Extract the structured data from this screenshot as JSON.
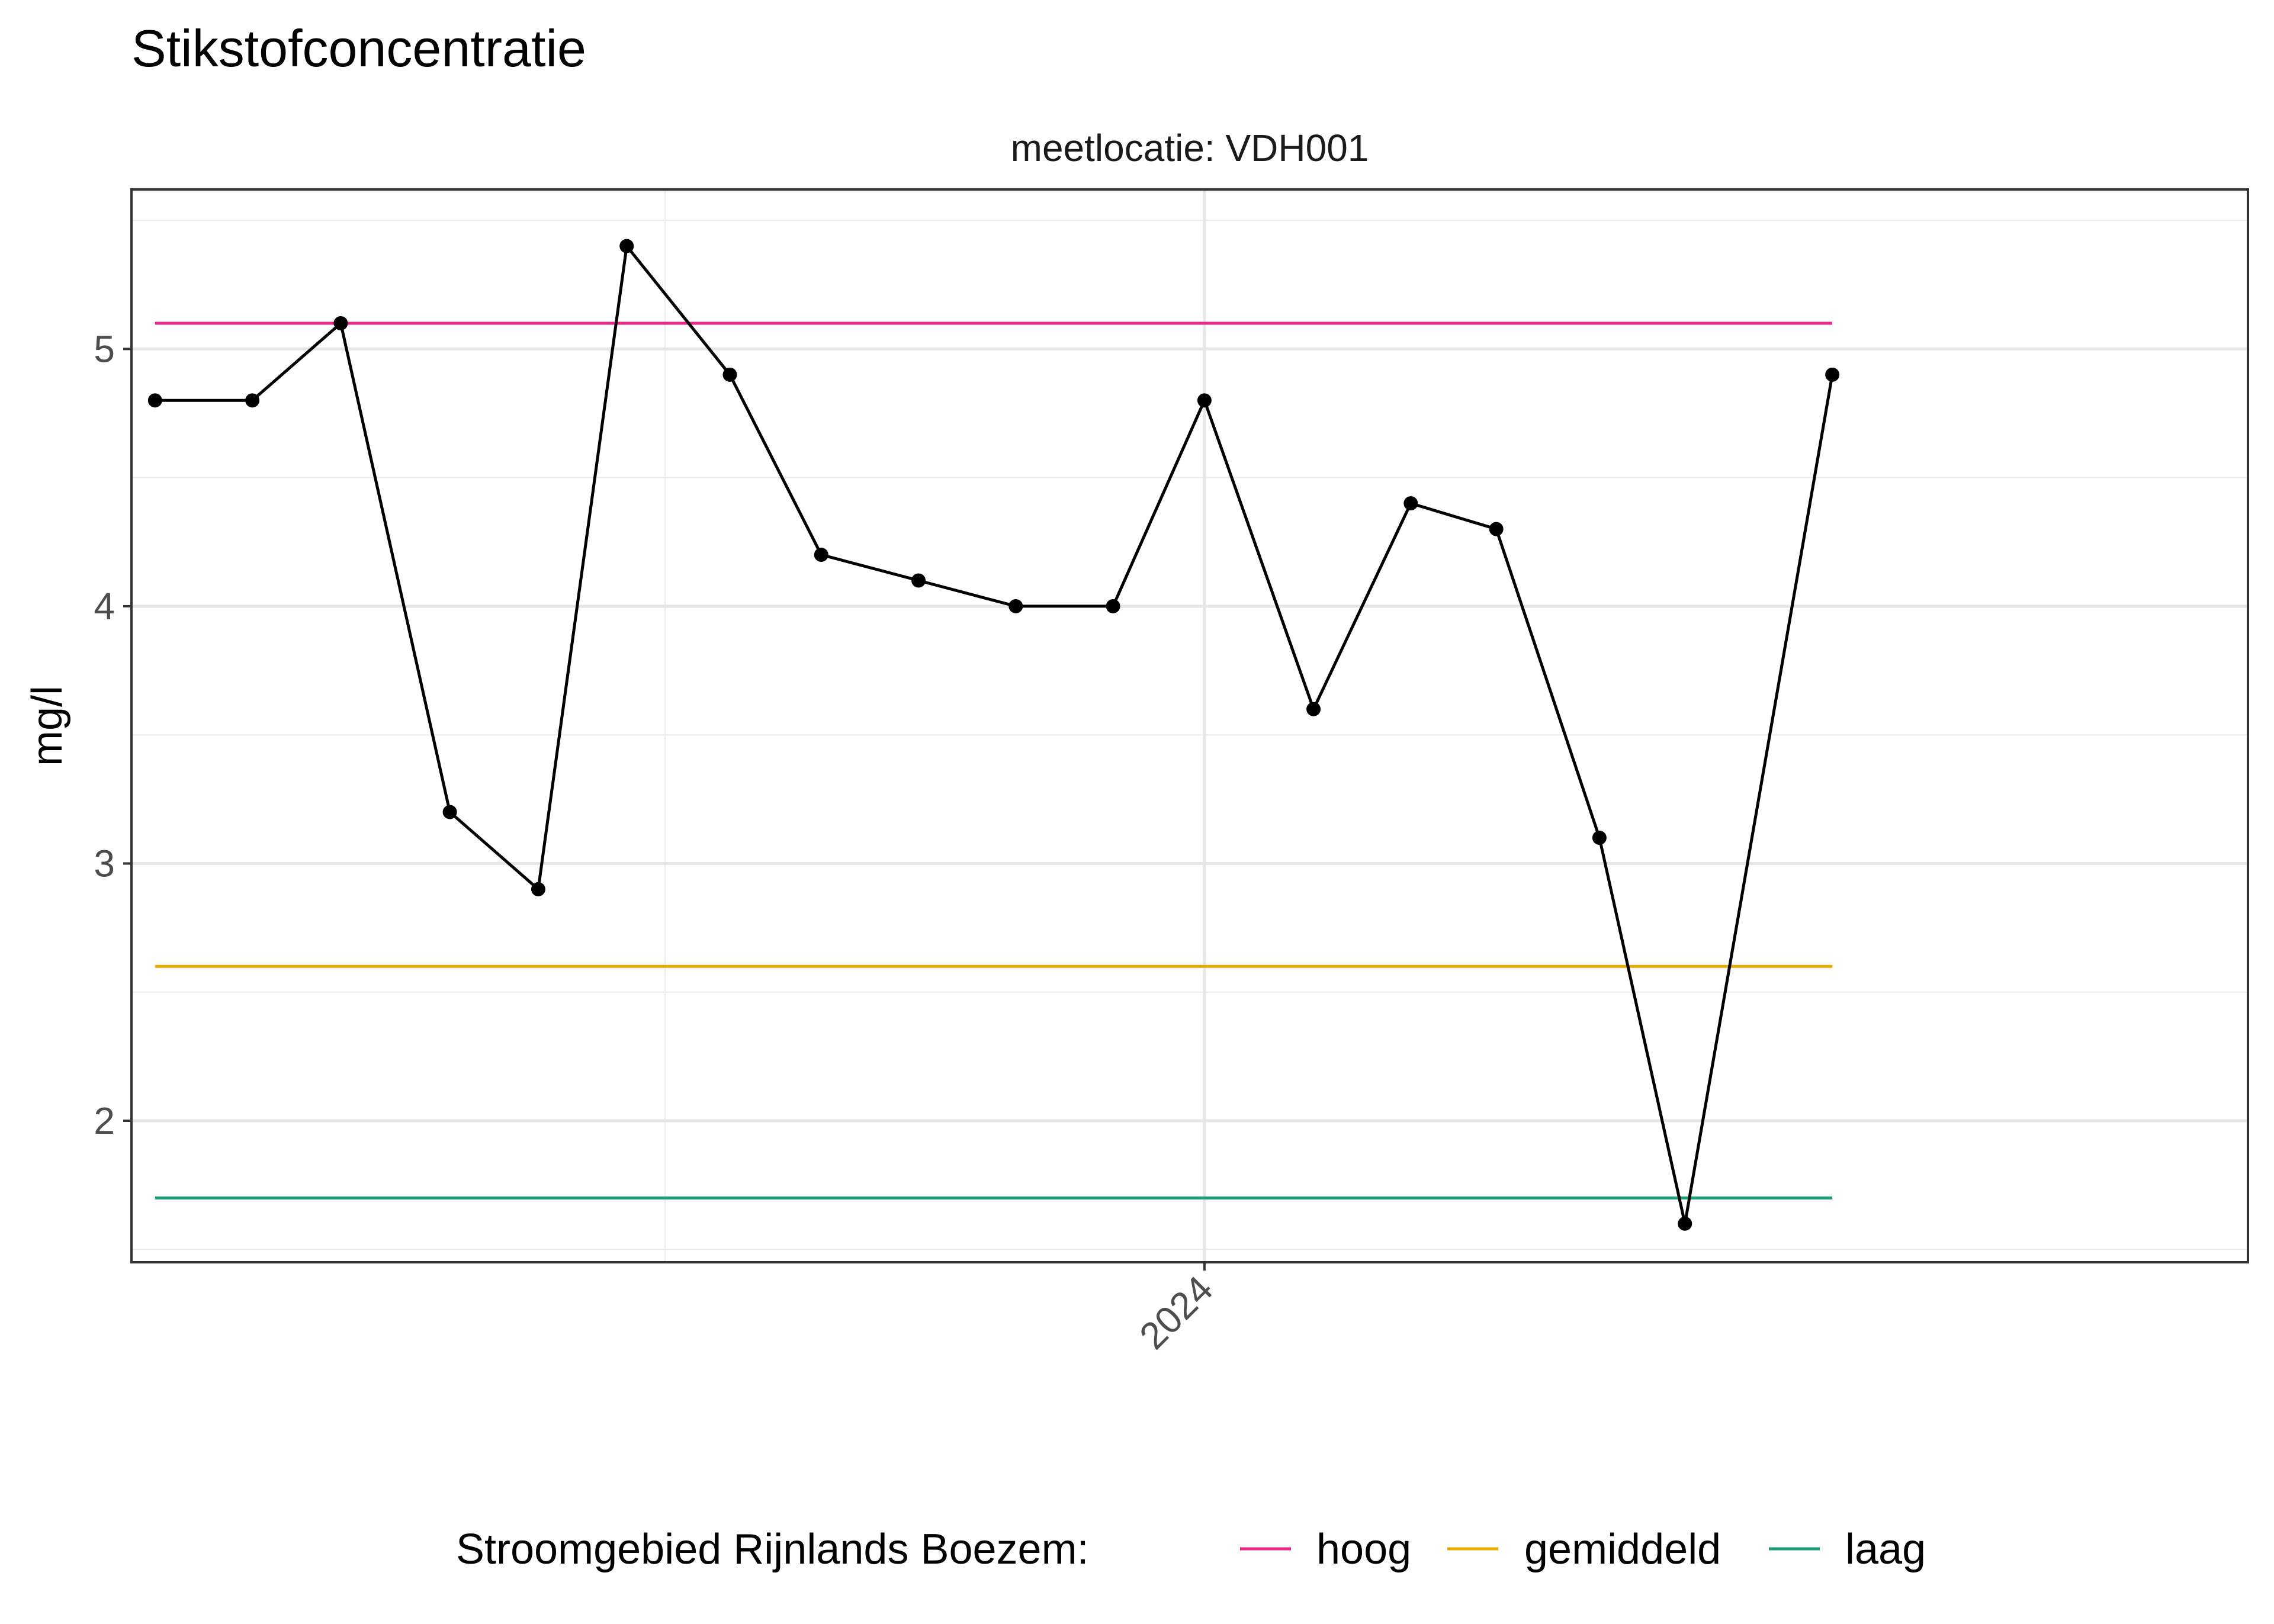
{
  "chart_data": {
    "type": "line",
    "title": "Stikstofconcentratie",
    "facet_label": "meetlocatie: VDH001",
    "xlabel": "",
    "ylabel": "mg/l",
    "x_ticks": [
      {
        "label": "2024",
        "value": "2024-01-01"
      }
    ],
    "xlim": [
      "2023-01-02",
      "2024-12-20"
    ],
    "ylim": [
      1.45,
      5.62
    ],
    "y_ticks": [
      2,
      3,
      4,
      5
    ],
    "grid": true,
    "series": [
      {
        "color": "#000000",
        "points": [
          {
            "x": "2023-01-10",
            "y": 4.8
          },
          {
            "x": "2023-02-12",
            "y": 4.8
          },
          {
            "x": "2023-03-14",
            "y": 5.1
          },
          {
            "x": "2023-04-20",
            "y": 3.2
          },
          {
            "x": "2023-05-20",
            "y": 2.9
          },
          {
            "x": "2023-06-19",
            "y": 5.4
          },
          {
            "x": "2023-07-24",
            "y": 4.9
          },
          {
            "x": "2023-08-24",
            "y": 4.2
          },
          {
            "x": "2023-09-26",
            "y": 4.1
          },
          {
            "x": "2023-10-29",
            "y": 4.0
          },
          {
            "x": "2023-12-01",
            "y": 4.0
          },
          {
            "x": "2024-01-01",
            "y": 4.8
          },
          {
            "x": "2024-02-07",
            "y": 3.6
          },
          {
            "x": "2024-03-11",
            "y": 4.4
          },
          {
            "x": "2024-04-09",
            "y": 4.3
          },
          {
            "x": "2024-05-14",
            "y": 3.1
          },
          {
            "x": "2024-06-12",
            "y": 1.6
          },
          {
            "x": "2024-08-01",
            "y": 4.9
          }
        ]
      }
    ],
    "reference_lines": [
      {
        "name": "hoog",
        "value": 5.1,
        "color": "#e7298a"
      },
      {
        "name": "gemiddeld",
        "value": 2.6,
        "color": "#e6ab02"
      },
      {
        "name": "laag",
        "value": 1.7,
        "color": "#1b9e77"
      }
    ],
    "reference_x_range": [
      "2023-01-10",
      "2024-08-01"
    ],
    "legend": {
      "title": "Stroomgebied Rijnlands Boezem:",
      "position": "bottom"
    }
  }
}
